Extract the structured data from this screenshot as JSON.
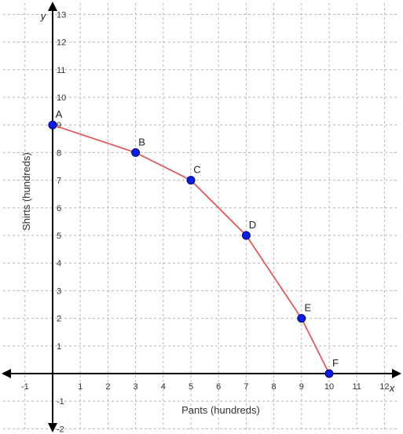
{
  "chart_data": {
    "type": "line",
    "title": "",
    "xlabel": "Pants (hundreds)",
    "ylabel": "Shirts (hundreds)",
    "x_axis_letter": "x",
    "y_axis_letter": "y",
    "xlim": [
      -1,
      12
    ],
    "ylim": [
      -2,
      13
    ],
    "x_ticks": [
      -1,
      1,
      2,
      3,
      4,
      5,
      6,
      7,
      8,
      9,
      10,
      11,
      12
    ],
    "y_ticks": [
      -2,
      -1,
      1,
      2,
      3,
      4,
      5,
      6,
      7,
      8,
      9,
      10,
      11,
      12,
      13
    ],
    "grid": true,
    "series": [
      {
        "points": [
          {
            "label": "A",
            "x": 0,
            "y": 9
          },
          {
            "label": "B",
            "x": 3,
            "y": 8
          },
          {
            "label": "C",
            "x": 5,
            "y": 7
          },
          {
            "label": "D",
            "x": 7,
            "y": 5
          },
          {
            "label": "E",
            "x": 9,
            "y": 2
          },
          {
            "label": "F",
            "x": 10,
            "y": 0
          }
        ]
      }
    ],
    "colors": {
      "line": "#e05a5a",
      "point": "#0a1ee0",
      "grid": "#b8b8b8",
      "axis": "#000000"
    }
  }
}
